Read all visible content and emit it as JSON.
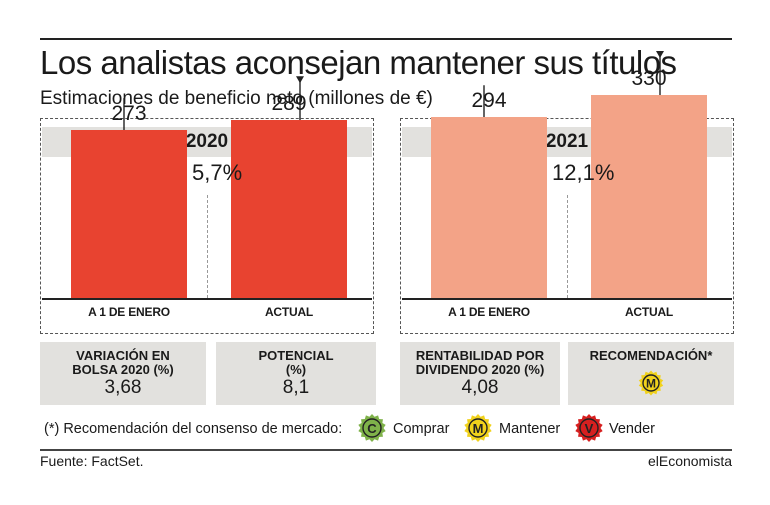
{
  "title": "Los analistas aconsejan mantener sus títulos",
  "subtitle": "Estimaciones de beneficio neto (millones de €)",
  "chart_data": [
    {
      "type": "bar",
      "title": "2020",
      "categories": [
        "A 1 DE ENERO",
        "ACTUAL"
      ],
      "values": [
        273,
        289
      ],
      "value_labels": [
        "273",
        "289"
      ],
      "change_label": "5,7%",
      "change_direction": "up",
      "ylim": [
        0,
        400
      ]
    },
    {
      "type": "bar",
      "title": "2021",
      "categories": [
        "A 1 DE ENERO",
        "ACTUAL"
      ],
      "values": [
        294,
        330
      ],
      "value_labels": [
        "294",
        "330"
      ],
      "change_label": "12,1%",
      "change_direction": "up",
      "ylim": [
        0,
        400
      ]
    }
  ],
  "colors": {
    "bar_2020": "#e84330",
    "bar_2021": "#f3a387",
    "arrow_up": "#7fb24a",
    "comprar": "#7fb24a",
    "mantener": "#f1d21c",
    "vender": "#d62020"
  },
  "info": [
    {
      "label_lines": [
        "VARIACIÓN EN",
        "BOLSA 2020 (%)"
      ],
      "value": "3,68"
    },
    {
      "label_lines": [
        "POTENCIAL",
        "(%)"
      ],
      "value": "8,1"
    },
    {
      "label_lines": [
        "RENTABILIDAD POR",
        "DIVIDENDO 2020 (%)"
      ],
      "value": "4,08"
    },
    {
      "label_lines": [
        "RECOMENDACIÓN*"
      ],
      "badge_letter": "M",
      "badge_icon": "mantener-badge-icon"
    }
  ],
  "legend": {
    "note": "(*) Recomendación del consenso de mercado:",
    "items": [
      {
        "letter": "C",
        "label": "Comprar",
        "icon": "comprar-badge-icon"
      },
      {
        "letter": "M",
        "label": "Mantener",
        "icon": "mantener-badge-icon"
      },
      {
        "letter": "V",
        "label": "Vender",
        "icon": "vender-badge-icon"
      }
    ]
  },
  "footer": {
    "source": "Fuente: FactSet.",
    "brand": "elEconomista"
  }
}
